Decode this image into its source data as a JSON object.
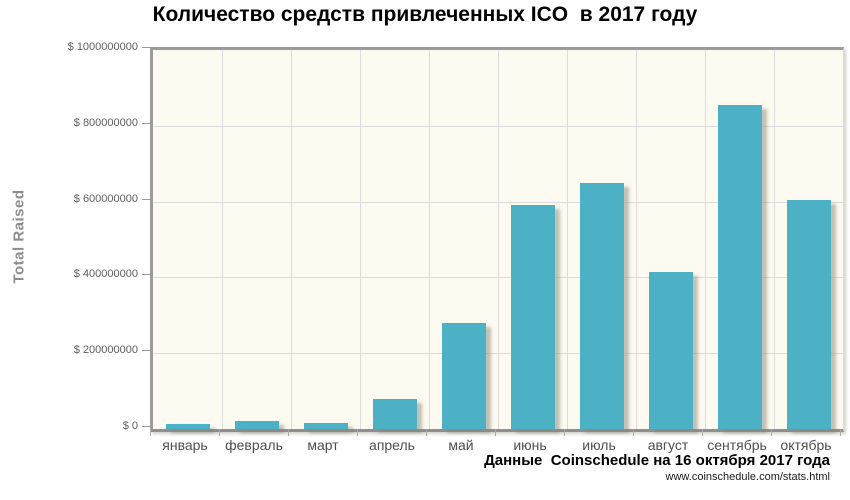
{
  "title": "Количество средств привлеченных ICO  в 2017 году",
  "y_axis_title": "Total Raised",
  "footer": {
    "source": "Данные  Coinschedule на 16 октября 2017 года",
    "url": "www.coinschedule.com/stats.html"
  },
  "colors": {
    "bar": "#4db1c5",
    "plot_background": "#fdfaf1",
    "gridline": "#dcdcdc",
    "axis": "#9b9b9b",
    "y_tick_text": "#5f5f5f",
    "x_tick_text": "#4f4f4f",
    "y_axis_title_text": "#8d8d8d",
    "title_text": "#000000"
  },
  "chart_data": {
    "type": "bar",
    "title": "Количество средств привлеченных ICO  в 2017 году",
    "xlabel": "",
    "ylabel": "Total Raised",
    "categories": [
      "январь",
      "февраль",
      "март",
      "апрель",
      "май",
      "июнь",
      "июль",
      "август",
      "сентябрь",
      "октябрь"
    ],
    "values": [
      12000000,
      20000000,
      15000000,
      78000000,
      280000000,
      590000000,
      650000000,
      415000000,
      855000000,
      605000000
    ],
    "ylim": [
      0,
      1000000000
    ],
    "y_ticks": [
      0,
      200000000,
      400000000,
      600000000,
      800000000,
      1000000000
    ],
    "y_tick_prefix": "$ ",
    "grid": true,
    "legend_position": "none",
    "source_note": "Данные  Coinschedule на 16 октября 2017 года",
    "source_url": "www.coinschedule.com/stats.html"
  }
}
